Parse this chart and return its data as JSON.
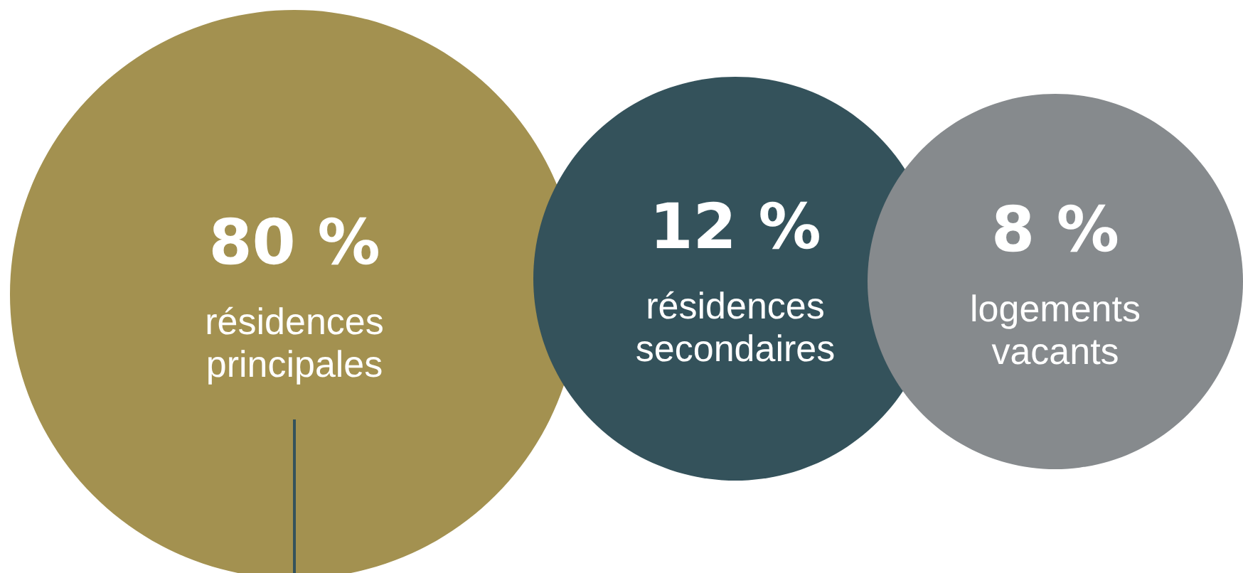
{
  "chart_data": {
    "type": "other",
    "categories": [
      "résidences principales",
      "résidences secondaires",
      "logements vacants"
    ],
    "values": [
      80,
      12,
      8
    ],
    "value_labels": [
      "80 %",
      "12 %",
      "8 %"
    ],
    "colors": [
      "#a39150",
      "#34525b",
      "#868a8d"
    ]
  }
}
